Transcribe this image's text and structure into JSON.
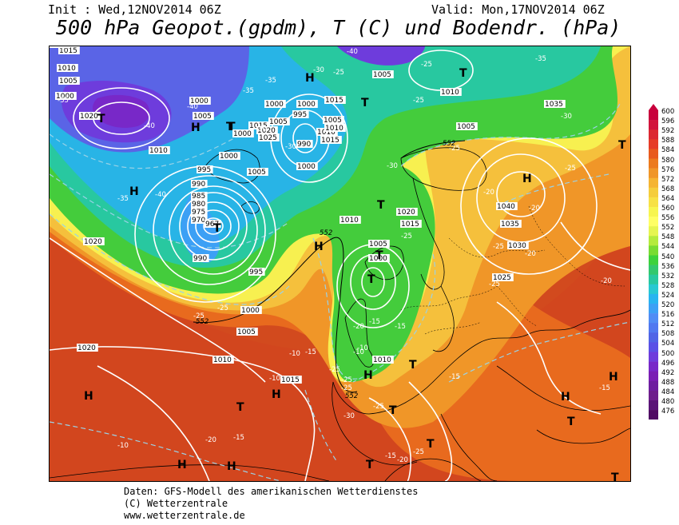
{
  "header": {
    "init": "Init : Wed,12NOV2014 06Z",
    "valid": "Valid: Mon,17NOV2014 06Z",
    "title": "500 hPa Geopot.(gpdm), T (C) und Bodendr. (hPa)"
  },
  "footer": {
    "line1": "Daten: GFS-Modell des amerikanischen Wetterdienstes",
    "line2": "(C) Wetterzentrale",
    "line3": "www.wetterzentrale.de"
  },
  "colorbar": {
    "labels": [
      "600",
      "596",
      "592",
      "588",
      "584",
      "580",
      "576",
      "572",
      "568",
      "564",
      "560",
      "556",
      "552",
      "548",
      "544",
      "540",
      "536",
      "532",
      "528",
      "524",
      "520",
      "516",
      "512",
      "508",
      "504",
      "500",
      "496",
      "492",
      "488",
      "484",
      "480",
      "476"
    ],
    "colors": [
      "#c8003c",
      "#d2143c",
      "#dc2832",
      "#e63c28",
      "#e85a1e",
      "#ec7a1e",
      "#f09628",
      "#f5b432",
      "#f5cd3c",
      "#f7e146",
      "#f7f550",
      "#ffff64",
      "#e6f550",
      "#b4eb3c",
      "#78dc32",
      "#3cd23c",
      "#32c86e",
      "#28c8a0",
      "#28c8d2",
      "#28b4f0",
      "#3ca0f5",
      "#508cf5",
      "#5078f0",
      "#5064e6",
      "#5a50e6",
      "#6e3cdc",
      "#7828c8",
      "#7a1eb4",
      "#6e1ea0",
      "#6e1e8c",
      "#5a1478",
      "#500a64"
    ]
  },
  "map_labels": {
    "isobars": [
      "1015",
      "1010",
      "1005",
      "1000",
      "1000",
      "1005",
      "1020",
      "1000",
      "1005",
      "1005",
      "1010",
      "1015",
      "1005",
      "1000",
      "995",
      "1010",
      "1015",
      "1020",
      "1025",
      "990",
      "1000",
      "1010",
      "1005",
      "1015",
      "1035",
      "1010",
      "1000",
      "995",
      "990",
      "985",
      "980",
      "975",
      "970",
      "967",
      "1005",
      "1000",
      "1020",
      "1015",
      "1040",
      "1035",
      "1030",
      "1025",
      "1010",
      "1005",
      "1000",
      "1020",
      "990",
      "995",
      "1000",
      "1005",
      "1020",
      "1010",
      "1015",
      "1010",
      "1010",
      "1010"
    ],
    "temps": [
      "-40",
      "-35",
      "-35",
      "-40",
      "-40",
      "-35",
      "-40",
      "-30",
      "-30",
      "-35",
      "-30",
      "-25",
      "-25",
      "-25",
      "-35",
      "-30",
      "-25",
      "-30",
      "-25",
      "-25",
      "-20",
      "-20",
      "-20",
      "-25",
      "-25",
      "-20",
      "-25",
      "-25",
      "-25",
      "-20",
      "-15",
      "-15",
      "-10",
      "-10",
      "-10",
      "-15",
      "-15",
      "-10",
      "-10",
      "-25",
      "-25",
      "-30",
      "-15",
      "-20",
      "-15",
      "-25",
      "-20",
      "-25",
      "-15"
    ],
    "heights": [
      "552",
      "552",
      "552",
      "552"
    ],
    "highs": [
      "H",
      "H",
      "H",
      "H",
      "H",
      "H",
      "H",
      "H",
      "H",
      "H",
      "H",
      "H"
    ],
    "lows": [
      "T",
      "T",
      "T",
      "T",
      "T",
      "T",
      "T",
      "T",
      "T",
      "T",
      "T",
      "T",
      "T",
      "T",
      "T",
      "T",
      "T"
    ]
  }
}
